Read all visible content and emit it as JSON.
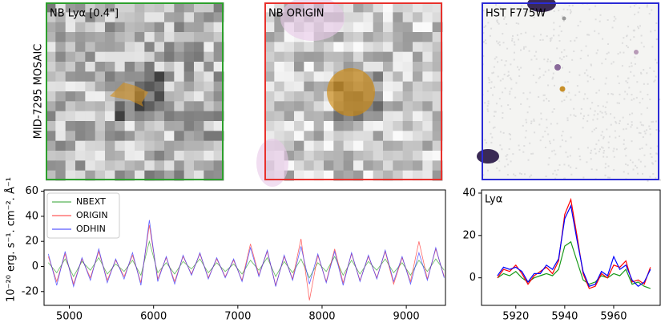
{
  "row_label": "MID-7295 MOSAIC",
  "panels": [
    {
      "title": "NB Lyα [0.4\"]",
      "border": "#2ca02c"
    },
    {
      "title": "NB ORIGIN",
      "border": "#e8312c"
    },
    {
      "title": "HST F775W",
      "border": "#2b2bd6"
    }
  ],
  "chart_data": [
    {
      "type": "line",
      "ylabel": "10⁻²⁰ erg. s⁻¹. cm⁻². Å⁻¹",
      "x": [
        4750,
        4850,
        4950,
        5050,
        5150,
        5250,
        5350,
        5450,
        5550,
        5650,
        5750,
        5850,
        5950,
        6050,
        6150,
        6250,
        6350,
        6450,
        6550,
        6650,
        6750,
        6850,
        6950,
        7050,
        7150,
        7250,
        7350,
        7450,
        7550,
        7650,
        7750,
        7850,
        7950,
        8050,
        8150,
        8250,
        8350,
        8450,
        8550,
        8650,
        8750,
        8850,
        8950,
        9050,
        9150,
        9250,
        9350,
        9450
      ],
      "series": [
        {
          "name": "NBEXT",
          "color": "#2ca02c",
          "values": [
            3,
            -5,
            6,
            -8,
            4,
            -3,
            7,
            -6,
            2,
            -4,
            5,
            -7,
            20,
            -5,
            3,
            -6,
            4,
            -2,
            6,
            -5,
            3,
            -4,
            2,
            -6,
            5,
            -3,
            7,
            -8,
            4,
            -5,
            6,
            -9,
            3,
            -4,
            8,
            -7,
            5,
            -6,
            4,
            -3,
            6,
            -5,
            3,
            -7,
            5,
            -4,
            6,
            -3
          ]
        },
        {
          "name": "ORIGIN",
          "color": "#ff3030",
          "values": [
            8,
            -12,
            10,
            -14,
            6,
            -9,
            12,
            -11,
            5,
            -8,
            9,
            -13,
            33,
            -10,
            7,
            -12,
            8,
            -6,
            10,
            -9,
            6,
            -8,
            5,
            -11,
            18,
            -7,
            12,
            -15,
            8,
            -10,
            22,
            -27,
            9,
            -12,
            14,
            -13,
            10,
            -11,
            8,
            -9,
            12,
            -14,
            7,
            -12,
            20,
            -10,
            14,
            -8
          ]
        },
        {
          "name": "ODHIN",
          "color": "#3030ff",
          "values": [
            10,
            -15,
            12,
            -16,
            7,
            -11,
            14,
            -13,
            6,
            -10,
            11,
            -15,
            37,
            -12,
            8,
            -14,
            9,
            -7,
            11,
            -10,
            7,
            -9,
            6,
            -12,
            15,
            -8,
            13,
            -16,
            9,
            -11,
            16,
            -14,
            10,
            -13,
            12,
            -15,
            11,
            -12,
            9,
            -10,
            13,
            -12,
            8,
            -14,
            11,
            -11,
            15,
            -9
          ]
        }
      ],
      "xlim": [
        4700,
        9465
      ],
      "ylim": [
        -31,
        61
      ],
      "xticks": [
        5000,
        6000,
        7000,
        8000,
        9000
      ],
      "yticks": [
        -20,
        0,
        20,
        40,
        60
      ],
      "legend": "upper left"
    },
    {
      "type": "line",
      "annotation": "Lyα",
      "x": [
        5912.5,
        5915,
        5917.5,
        5920,
        5922.5,
        5925,
        5927.5,
        5930,
        5932.5,
        5935,
        5937.5,
        5940,
        5942.5,
        5945,
        5947.5,
        5950,
        5952.5,
        5955,
        5957.5,
        5960,
        5962.5,
        5965,
        5967.5,
        5970,
        5972.5,
        5975
      ],
      "series": [
        {
          "name": "NBEXT",
          "color": "#1a9a1a",
          "values": [
            0,
            2,
            1,
            3,
            0,
            -2,
            0,
            1,
            2,
            1,
            4,
            15,
            17,
            8,
            -1,
            -3,
            -2,
            1,
            0,
            2,
            1,
            4,
            -3,
            -2,
            -4,
            -5
          ]
        },
        {
          "name": "ORIGIN",
          "color": "#ff0000",
          "values": [
            0,
            4,
            3,
            6,
            2,
            -3,
            1,
            3,
            5,
            2,
            8,
            30,
            37,
            20,
            2,
            -5,
            -4,
            2,
            0,
            6,
            5,
            8,
            -2,
            -1,
            -3,
            5
          ]
        },
        {
          "name": "ODHIN",
          "color": "#0000ff",
          "values": [
            1,
            5,
            4,
            5,
            3,
            -2,
            2,
            2,
            6,
            4,
            9,
            28,
            34,
            18,
            3,
            -4,
            -3,
            3,
            1,
            10,
            4,
            6,
            -1,
            -4,
            -2,
            4
          ]
        }
      ],
      "xlim": [
        5906,
        5979
      ],
      "ylim": [
        -13,
        41.5
      ],
      "xticks": [
        5920,
        5940,
        5960
      ],
      "yticks": [
        0,
        20,
        40
      ]
    }
  ]
}
